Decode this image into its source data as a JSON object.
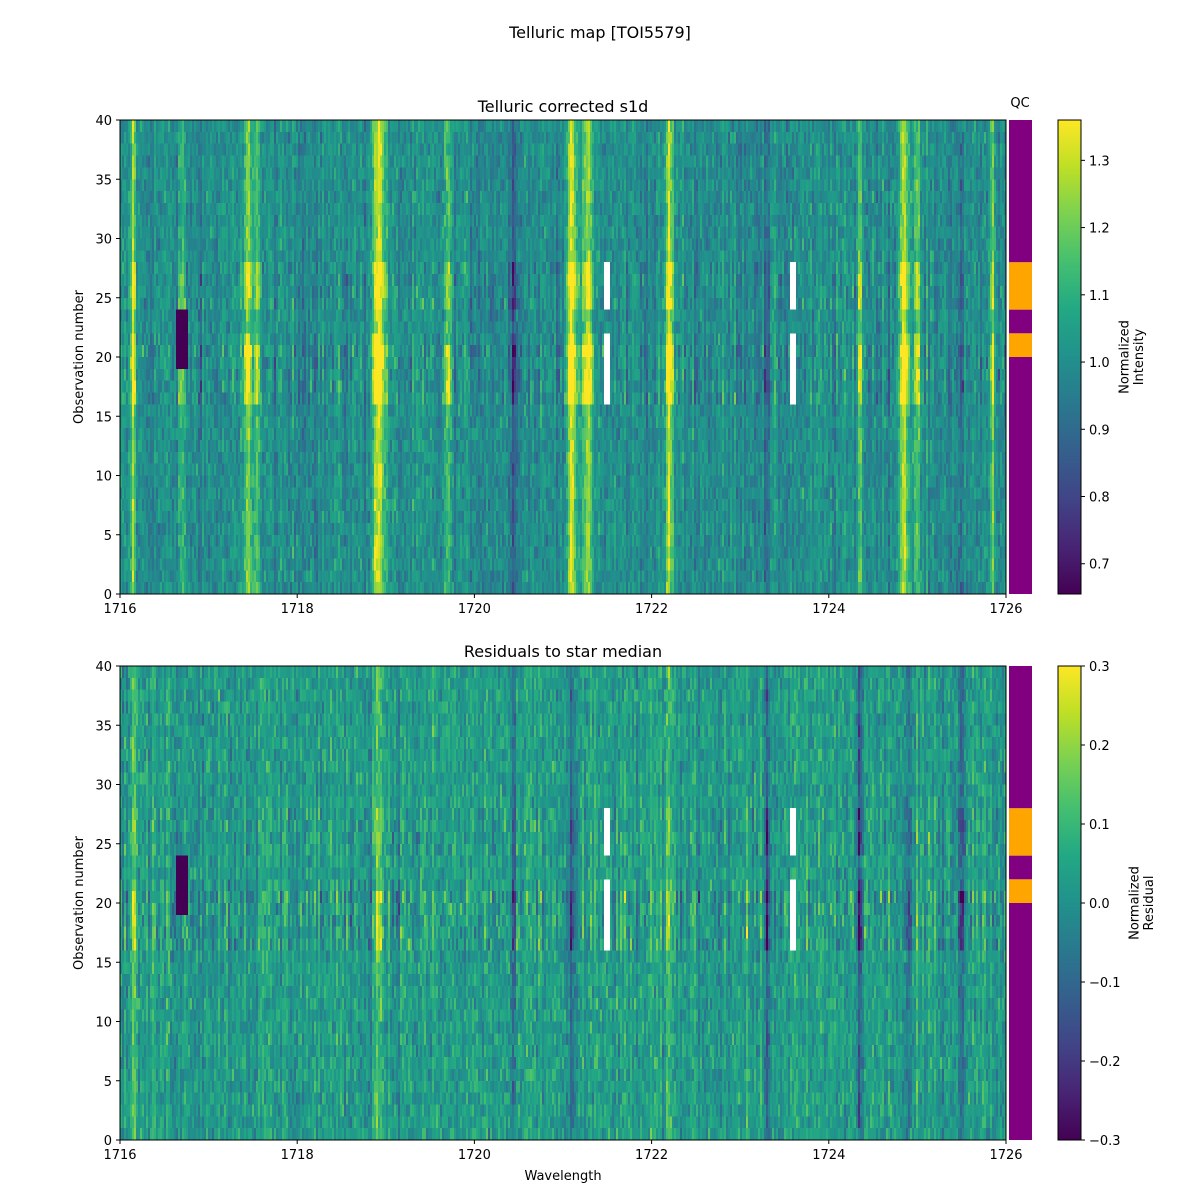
{
  "figure": {
    "suptitle": "Telluric map [TOI5579]"
  },
  "qc": {
    "label": "QC",
    "colors": {
      "pass": "#800080",
      "warn": "#ffa500"
    },
    "segments": [
      {
        "from": 0,
        "to": 20,
        "status": "pass"
      },
      {
        "from": 20,
        "to": 22,
        "status": "warn"
      },
      {
        "from": 22,
        "to": 24,
        "status": "pass"
      },
      {
        "from": 24,
        "to": 28,
        "status": "warn"
      },
      {
        "from": 28,
        "to": 40,
        "status": "pass"
      }
    ]
  },
  "chart_data": [
    {
      "type": "heatmap",
      "title": "Telluric corrected s1d",
      "xlabel": "",
      "ylabel": "Observation number",
      "xlim": [
        1716,
        1726
      ],
      "ylim": [
        0,
        40
      ],
      "xticks": [
        "1716",
        "1718",
        "1720",
        "1722",
        "1724",
        "1726"
      ],
      "yticks": [
        "0",
        "5",
        "10",
        "15",
        "20",
        "25",
        "30",
        "35",
        "40"
      ],
      "colormap": "viridis",
      "colorbar": {
        "label": [
          "Normalized",
          "Intensity"
        ],
        "range": [
          0.655,
          1.36
        ],
        "ticks": [
          "0.7",
          "0.8",
          "0.9",
          "1.0",
          "1.1",
          "1.2",
          "1.3"
        ]
      },
      "baseline": 1.0,
      "noise": 0.085,
      "features": [
        {
          "center": 1716.15,
          "width": 0.02,
          "amp": 0.25
        },
        {
          "center": 1716.7,
          "width": 0.02,
          "amp": 0.12
        },
        {
          "center": 1717.45,
          "width": 0.04,
          "amp": 0.2
        },
        {
          "center": 1717.55,
          "width": 0.02,
          "amp": 0.18
        },
        {
          "center": 1718.92,
          "width": 0.05,
          "amp": 0.32
        },
        {
          "center": 1719.7,
          "width": 0.02,
          "amp": 0.18
        },
        {
          "center": 1720.45,
          "width": 0.02,
          "amp": -0.15
        },
        {
          "center": 1721.1,
          "width": 0.04,
          "amp": 0.28
        },
        {
          "center": 1721.28,
          "width": 0.04,
          "amp": 0.25
        },
        {
          "center": 1722.2,
          "width": 0.03,
          "amp": 0.3
        },
        {
          "center": 1723.3,
          "width": 0.02,
          "amp": -0.12
        },
        {
          "center": 1724.35,
          "width": 0.02,
          "amp": 0.2
        },
        {
          "center": 1724.85,
          "width": 0.04,
          "amp": 0.28
        },
        {
          "center": 1725.0,
          "width": 0.02,
          "amp": 0.2
        },
        {
          "center": 1725.5,
          "width": 0.02,
          "amp": -0.12
        },
        {
          "center": 1725.85,
          "width": 0.02,
          "amp": 0.18
        }
      ],
      "flagged_rows": [
        {
          "from": 16,
          "to": 21,
          "boost": 0.16
        },
        {
          "from": 20,
          "to": 22,
          "boost": 0.08
        },
        {
          "from": 24,
          "to": 28,
          "boost": 0.12
        }
      ],
      "dark_patches": [
        {
          "x0": 1716.64,
          "x1": 1716.76,
          "y0": 19,
          "y1": 24
        }
      ],
      "masked": [
        {
          "x0": 1721.47,
          "x1": 1721.53,
          "y0": 16,
          "y1": 22
        },
        {
          "x0": 1721.47,
          "x1": 1721.53,
          "y0": 24,
          "y1": 28
        },
        {
          "x0": 1723.57,
          "x1": 1723.63,
          "y0": 16,
          "y1": 22
        },
        {
          "x0": 1723.57,
          "x1": 1723.63,
          "y0": 24,
          "y1": 28
        }
      ]
    },
    {
      "type": "heatmap",
      "title": "Residuals to star median",
      "xlabel": "Wavelength",
      "ylabel": "Observation number",
      "xlim": [
        1716,
        1726
      ],
      "ylim": [
        0,
        40
      ],
      "xticks": [
        "1716",
        "1718",
        "1720",
        "1722",
        "1724",
        "1726"
      ],
      "yticks": [
        "0",
        "5",
        "10",
        "15",
        "20",
        "25",
        "30",
        "35",
        "40"
      ],
      "colormap": "viridis",
      "colorbar": {
        "label": [
          "Normalized",
          "Residual"
        ],
        "range": [
          -0.3,
          0.3
        ],
        "ticks": [
          "−0.3",
          "−0.2",
          "−0.1",
          "0.0",
          "0.1",
          "0.2",
          "0.3"
        ]
      },
      "baseline": 0.03,
      "noise": 0.08,
      "features": [
        {
          "center": 1716.15,
          "width": 0.02,
          "amp": 0.12
        },
        {
          "center": 1718.92,
          "width": 0.04,
          "amp": 0.1
        },
        {
          "center": 1720.45,
          "width": 0.02,
          "amp": -0.12
        },
        {
          "center": 1721.1,
          "width": 0.03,
          "amp": -0.12
        },
        {
          "center": 1722.2,
          "width": 0.02,
          "amp": 0.08
        },
        {
          "center": 1723.3,
          "width": 0.02,
          "amp": -0.15
        },
        {
          "center": 1724.35,
          "width": 0.02,
          "amp": -0.15
        },
        {
          "center": 1724.9,
          "width": 0.03,
          "amp": -0.1
        },
        {
          "center": 1725.5,
          "width": 0.02,
          "amp": -0.12
        }
      ],
      "flagged_rows": [
        {
          "from": 16,
          "to": 21,
          "boost": 0.18
        },
        {
          "from": 20,
          "to": 22,
          "boost": 0.08
        },
        {
          "from": 24,
          "to": 28,
          "boost": 0.1
        }
      ],
      "dark_patches": [
        {
          "x0": 1716.64,
          "x1": 1716.76,
          "y0": 19,
          "y1": 24
        }
      ],
      "masked": [
        {
          "x0": 1721.47,
          "x1": 1721.53,
          "y0": 16,
          "y1": 22
        },
        {
          "x0": 1721.47,
          "x1": 1721.53,
          "y0": 24,
          "y1": 28
        },
        {
          "x0": 1723.57,
          "x1": 1723.63,
          "y0": 16,
          "y1": 22
        },
        {
          "x0": 1723.57,
          "x1": 1723.63,
          "y0": 24,
          "y1": 28
        }
      ]
    }
  ]
}
